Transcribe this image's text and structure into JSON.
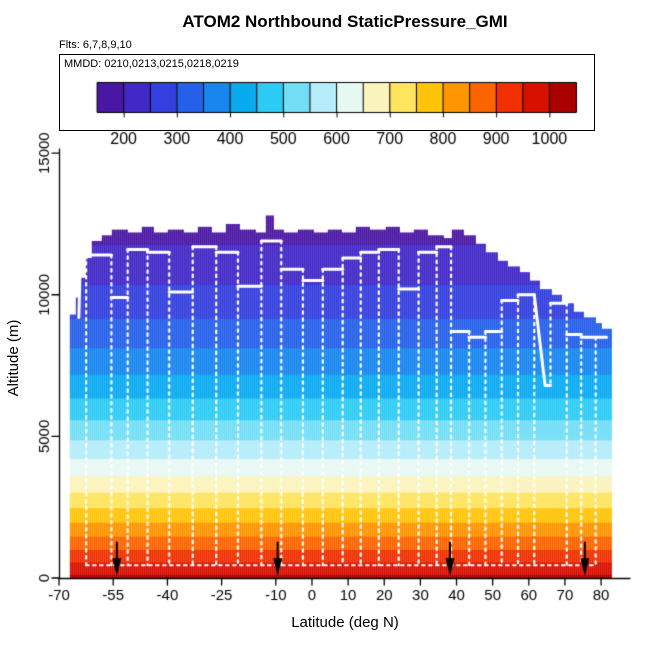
{
  "title": "ATOM2 Northbound StaticPressure_GMI",
  "flights_note": "Flts: 6,7,8,9,10",
  "legend": {
    "mmdd_label": "MMDD: 0210,0213,0215,0218,0219",
    "tick_values": [
      200,
      300,
      400,
      500,
      600,
      700,
      800,
      900,
      1000
    ],
    "range": [
      150,
      1050
    ]
  },
  "axes": {
    "x_label": "Latitude (deg N)",
    "y_label": "Altitude (m)",
    "x_ticks": [
      -70,
      -55,
      -40,
      -25,
      -10,
      0,
      10,
      20,
      30,
      40,
      50,
      60,
      70,
      80
    ],
    "y_ticks": [
      0,
      5000,
      10000,
      15000
    ],
    "xlim": [
      -70,
      88
    ],
    "ylim": [
      0,
      15500
    ]
  },
  "chart_data": {
    "type": "filled-contour",
    "variable": "StaticPressure_GMI",
    "pressure_bands": [
      {
        "p_low": 150,
        "p_high": 200,
        "color": "#4A16A4"
      },
      {
        "p_low": 200,
        "p_high": 250,
        "color": "#4228C8"
      },
      {
        "p_low": 250,
        "p_high": 300,
        "color": "#333FDE"
      },
      {
        "p_low": 300,
        "p_high": 350,
        "color": "#2560EA"
      },
      {
        "p_low": 350,
        "p_high": 400,
        "color": "#1786EF"
      },
      {
        "p_low": 400,
        "p_high": 450,
        "color": "#0AAAF1"
      },
      {
        "p_low": 450,
        "p_high": 500,
        "color": "#2CCBF4"
      },
      {
        "p_low": 500,
        "p_high": 550,
        "color": "#72DEF6"
      },
      {
        "p_low": 550,
        "p_high": 600,
        "color": "#B4ECFA"
      },
      {
        "p_low": 600,
        "p_high": 650,
        "color": "#E7F8F3"
      },
      {
        "p_low": 650,
        "p_high": 700,
        "color": "#FBF3BC"
      },
      {
        "p_low": 700,
        "p_high": 750,
        "color": "#FFE45E"
      },
      {
        "p_low": 750,
        "p_high": 800,
        "color": "#FFC40A"
      },
      {
        "p_low": 800,
        "p_high": 850,
        "color": "#FF9500"
      },
      {
        "p_low": 850,
        "p_high": 900,
        "color": "#FC6400"
      },
      {
        "p_low": 900,
        "p_high": 950,
        "color": "#F03000"
      },
      {
        "p_low": 950,
        "p_high": 1000,
        "color": "#D81000"
      },
      {
        "p_low": 1000,
        "p_high": 1050,
        "color": "#AB0000"
      }
    ],
    "data_extent_lat": [
      -67,
      82.5
    ],
    "ceiling_profile": [
      [
        -67,
        9300
      ],
      [
        -65.5,
        9900
      ],
      [
        -64.5,
        10600
      ],
      [
        -63,
        11300
      ],
      [
        -61,
        11900
      ],
      [
        -58.5,
        12100
      ],
      [
        -55.5,
        12300
      ],
      [
        -51,
        12200
      ],
      [
        -47.5,
        12400
      ],
      [
        -44,
        12200
      ],
      [
        -40,
        12300
      ],
      [
        -36,
        12200
      ],
      [
        -32,
        12400
      ],
      [
        -28,
        12200
      ],
      [
        -24,
        12500
      ],
      [
        -20,
        12300
      ],
      [
        -16,
        12200
      ],
      [
        -13,
        12800
      ],
      [
        -11,
        12300
      ],
      [
        -8,
        12200
      ],
      [
        -4,
        12300
      ],
      [
        0,
        12200
      ],
      [
        4,
        12300
      ],
      [
        8,
        12200
      ],
      [
        12,
        12400
      ],
      [
        16,
        12300
      ],
      [
        20,
        12400
      ],
      [
        24,
        12200
      ],
      [
        28,
        12300
      ],
      [
        32,
        12100
      ],
      [
        36,
        12000
      ],
      [
        38.5,
        12300
      ],
      [
        42,
        12100
      ],
      [
        45,
        11800
      ],
      [
        48,
        11500
      ],
      [
        51,
        11200
      ],
      [
        54,
        11000
      ],
      [
        57,
        10800
      ],
      [
        60,
        10500
      ],
      [
        63,
        10200
      ],
      [
        66,
        10000
      ],
      [
        69,
        9700
      ],
      [
        72,
        9400
      ],
      [
        75,
        9200
      ],
      [
        78,
        9000
      ],
      [
        80,
        8800
      ]
    ],
    "flight_track": {
      "color": "#FFFFFF",
      "cruise_segments": [
        [
          [
            -64.5,
            9200
          ],
          [
            -64.1,
            11300
          ],
          [
            -62.5,
            11300
          ]
        ],
        [
          [
            -62.5,
            11400
          ],
          [
            -55.5,
            11400
          ]
        ],
        [
          [
            -55.5,
            9900
          ],
          [
            -51,
            9900
          ]
        ],
        [
          [
            -51,
            11600
          ],
          [
            -45.5,
            11600
          ]
        ],
        [
          [
            -45.5,
            11500
          ],
          [
            -39.5,
            11500
          ]
        ],
        [
          [
            -39.5,
            10100
          ],
          [
            -33,
            10100
          ]
        ],
        [
          [
            -33,
            11700
          ],
          [
            -26.5,
            11700
          ]
        ],
        [
          [
            -26.5,
            11500
          ],
          [
            -20.5,
            11500
          ]
        ],
        [
          [
            -20.5,
            10300
          ],
          [
            -14,
            10300
          ]
        ],
        [
          [
            -14,
            11900
          ],
          [
            -8.5,
            11900
          ]
        ],
        [
          [
            -8.5,
            10900
          ],
          [
            -2.5,
            10900
          ]
        ],
        [
          [
            -2.5,
            10500
          ],
          [
            3,
            10500
          ]
        ],
        [
          [
            3,
            10900
          ],
          [
            8.5,
            10900
          ]
        ],
        [
          [
            8.5,
            11300
          ],
          [
            13.5,
            11300
          ]
        ],
        [
          [
            13.5,
            11500
          ],
          [
            18.5,
            11500
          ]
        ],
        [
          [
            18.5,
            11600
          ],
          [
            24,
            11600
          ]
        ],
        [
          [
            24,
            10200
          ],
          [
            29.5,
            10200
          ]
        ],
        [
          [
            29.5,
            11500
          ],
          [
            34.5,
            11500
          ]
        ],
        [
          [
            34.5,
            11700
          ],
          [
            38.5,
            11700
          ]
        ],
        [
          [
            38.5,
            8700
          ],
          [
            43.5,
            8700
          ]
        ],
        [
          [
            43.5,
            8500
          ],
          [
            48,
            8500
          ]
        ],
        [
          [
            48,
            8700
          ],
          [
            52.5,
            8700
          ]
        ],
        [
          [
            52.5,
            9800
          ],
          [
            57,
            9800
          ]
        ],
        [
          [
            57,
            10000
          ],
          [
            61.5,
            10000
          ]
        ],
        [
          [
            61.5,
            10000
          ],
          [
            64.5,
            6800
          ],
          [
            66,
            6800
          ]
        ],
        [
          [
            66,
            9700
          ],
          [
            70.5,
            9700
          ]
        ],
        [
          [
            70.5,
            8600
          ],
          [
            74.5,
            8600
          ]
        ],
        [
          [
            74.5,
            8500
          ],
          [
            78.5,
            8500
          ]
        ],
        [
          [
            78.5,
            8500
          ],
          [
            81.5,
            8500
          ]
        ]
      ],
      "profile_dives": [
        {
          "lat": -62.5,
          "top": 11400,
          "bottom": 450
        },
        {
          "lat": -55.5,
          "top": 11400,
          "bottom": 450
        },
        {
          "lat": -51,
          "top": 11600,
          "bottom": 450
        },
        {
          "lat": -45.5,
          "top": 11600,
          "bottom": 450
        },
        {
          "lat": -39.5,
          "top": 11500,
          "bottom": 450
        },
        {
          "lat": -33,
          "top": 11700,
          "bottom": 450
        },
        {
          "lat": -26.5,
          "top": 11700,
          "bottom": 450
        },
        {
          "lat": -20.5,
          "top": 11500,
          "bottom": 450
        },
        {
          "lat": -14,
          "top": 11900,
          "bottom": 450
        },
        {
          "lat": -8.5,
          "top": 11900,
          "bottom": 450
        },
        {
          "lat": -2.5,
          "top": 10900,
          "bottom": 450
        },
        {
          "lat": 3,
          "top": 10900,
          "bottom": 450
        },
        {
          "lat": 8.5,
          "top": 11300,
          "bottom": 450
        },
        {
          "lat": 13.5,
          "top": 11500,
          "bottom": 450
        },
        {
          "lat": 18.5,
          "top": 11600,
          "bottom": 450
        },
        {
          "lat": 24,
          "top": 11600,
          "bottom": 450
        },
        {
          "lat": 29.5,
          "top": 11500,
          "bottom": 450
        },
        {
          "lat": 34.5,
          "top": 11700,
          "bottom": 450
        },
        {
          "lat": 38.5,
          "top": 11700,
          "bottom": 450
        },
        {
          "lat": 43.5,
          "top": 8700,
          "bottom": 450
        },
        {
          "lat": 48,
          "top": 8700,
          "bottom": 450
        },
        {
          "lat": 52.5,
          "top": 9800,
          "bottom": 450
        },
        {
          "lat": 57,
          "top": 10000,
          "bottom": 450
        },
        {
          "lat": 61.5,
          "top": 10000,
          "bottom": 450
        },
        {
          "lat": 66,
          "top": 9700,
          "bottom": 6800
        },
        {
          "lat": 70.5,
          "top": 9700,
          "bottom": 450
        },
        {
          "lat": 74.5,
          "top": 8600,
          "bottom": 450
        },
        {
          "lat": 78.5,
          "top": 8500,
          "bottom": 450
        }
      ],
      "low_level_leg": {
        "alt": 450,
        "lat_range": [
          -62.5,
          78.5
        ]
      }
    },
    "event_arrows": {
      "color": "#000000",
      "lats": [
        -54,
        -9.5,
        38.2,
        75.5
      ]
    }
  }
}
